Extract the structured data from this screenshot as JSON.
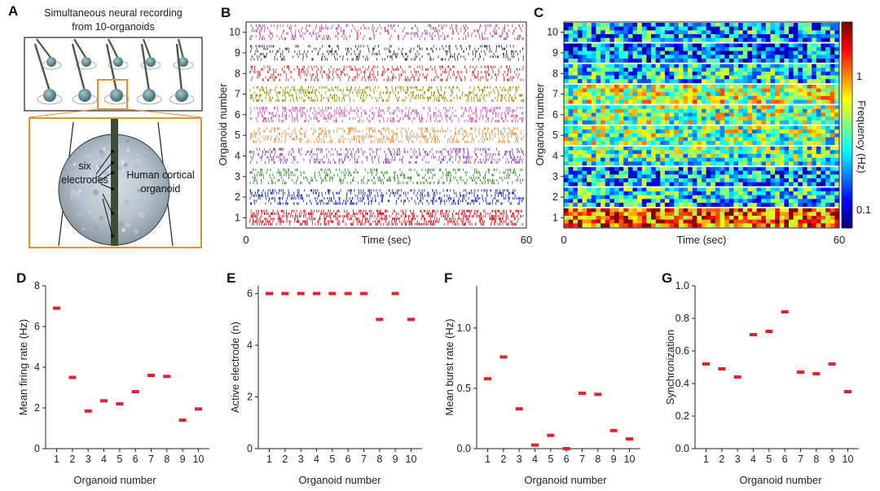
{
  "panel_a": {
    "letter": "A",
    "title_line1": "Simultaneous neural recording",
    "title_line2": "from 10-organoids",
    "label_electrodes_1": "six",
    "label_electrodes_2": "electrodes",
    "label_organoid_1": "Human cortical",
    "label_organoid_2": "organoid"
  },
  "chart_data": [
    {
      "panel": "B",
      "type": "scatter",
      "title": "",
      "xlabel": "Time (sec)",
      "ylabel": "Organoid number",
      "xlim": [
        0,
        60
      ],
      "x_ticks": [
        "0",
        "60"
      ],
      "categories": [
        "1",
        "2",
        "3",
        "4",
        "5",
        "6",
        "7",
        "8",
        "9",
        "10"
      ],
      "series_colors": [
        "#e8202a",
        "#2238c8",
        "#3c9a3c",
        "#9b52c8",
        "#f0944a",
        "#e060b8",
        "#9a9a10",
        "#e43a3a",
        "#444444",
        "#c8509a"
      ],
      "density": [
        0.85,
        0.45,
        0.3,
        0.4,
        0.45,
        0.5,
        0.45,
        0.35,
        0.2,
        0.25
      ]
    },
    {
      "panel": "C",
      "type": "heatmap",
      "title": "",
      "xlabel": "Time (sec)",
      "ylabel": "Organoid number",
      "xlim": [
        0,
        60
      ],
      "x_ticks": [
        "0",
        "60"
      ],
      "categories": [
        "1",
        "2",
        "3",
        "4",
        "5",
        "6",
        "7",
        "8",
        "9",
        "10"
      ],
      "colorbar_label": "Frequency (Hz)",
      "colorbar_ticks": [
        "1",
        "0.1"
      ],
      "colorscale": "jet",
      "mean_level": [
        0.8,
        0.35,
        0.3,
        0.45,
        0.5,
        0.5,
        0.55,
        0.35,
        0.25,
        0.3
      ]
    },
    {
      "panel": "D",
      "type": "scatter",
      "title": "",
      "xlabel": "Organoid number",
      "ylabel": "Mean firing rate  (Hz)",
      "x": [
        1,
        2,
        3,
        4,
        5,
        6,
        7,
        8,
        9,
        10
      ],
      "values": [
        6.9,
        3.5,
        1.85,
        2.35,
        2.2,
        2.8,
        3.6,
        3.55,
        1.4,
        1.95
      ],
      "ylim": [
        0,
        8
      ],
      "y_ticks": [
        0,
        2,
        4,
        6,
        8
      ],
      "color": "#e8202a"
    },
    {
      "panel": "E",
      "type": "scatter",
      "title": "",
      "xlabel": "Organoid number",
      "ylabel": "Active electrode  (n)",
      "x": [
        1,
        2,
        3,
        4,
        5,
        6,
        7,
        8,
        9,
        10
      ],
      "values": [
        6,
        6,
        6,
        6,
        6,
        6,
        6,
        5,
        6,
        5
      ],
      "ylim": [
        0,
        6.3
      ],
      "y_ticks": [
        0,
        2,
        4,
        6
      ],
      "color": "#e8202a"
    },
    {
      "panel": "F",
      "type": "scatter",
      "title": "",
      "xlabel": "Organoid number",
      "ylabel": "Mean burst rate  (Hz)",
      "x": [
        1,
        2,
        3,
        4,
        5,
        6,
        7,
        8,
        9,
        10
      ],
      "values": [
        0.58,
        0.76,
        0.33,
        0.03,
        0.11,
        0.0,
        0.46,
        0.45,
        0.15,
        0.08
      ],
      "ylim": [
        0,
        1.35
      ],
      "y_ticks": [
        0.0,
        0.5,
        1.0,
        1.5
      ],
      "y_tick_labels": [
        "0.0",
        "0.5",
        "1.0",
        ""
      ],
      "color": "#e8202a"
    },
    {
      "panel": "G",
      "type": "scatter",
      "title": "",
      "xlabel": "Organoid number",
      "ylabel": "Synchronization",
      "x": [
        1,
        2,
        3,
        4,
        5,
        6,
        7,
        8,
        9,
        10
      ],
      "values": [
        0.52,
        0.49,
        0.44,
        0.7,
        0.72,
        0.84,
        0.47,
        0.46,
        0.52,
        0.35
      ],
      "ylim": [
        0,
        1.0
      ],
      "y_ticks": [
        0.0,
        0.2,
        0.4,
        0.6,
        0.8,
        1.0
      ],
      "y_tick_labels": [
        "0.0",
        "0.2",
        "0.4",
        "0.6",
        "0.8",
        "1.0"
      ],
      "color": "#e8202a"
    }
  ]
}
